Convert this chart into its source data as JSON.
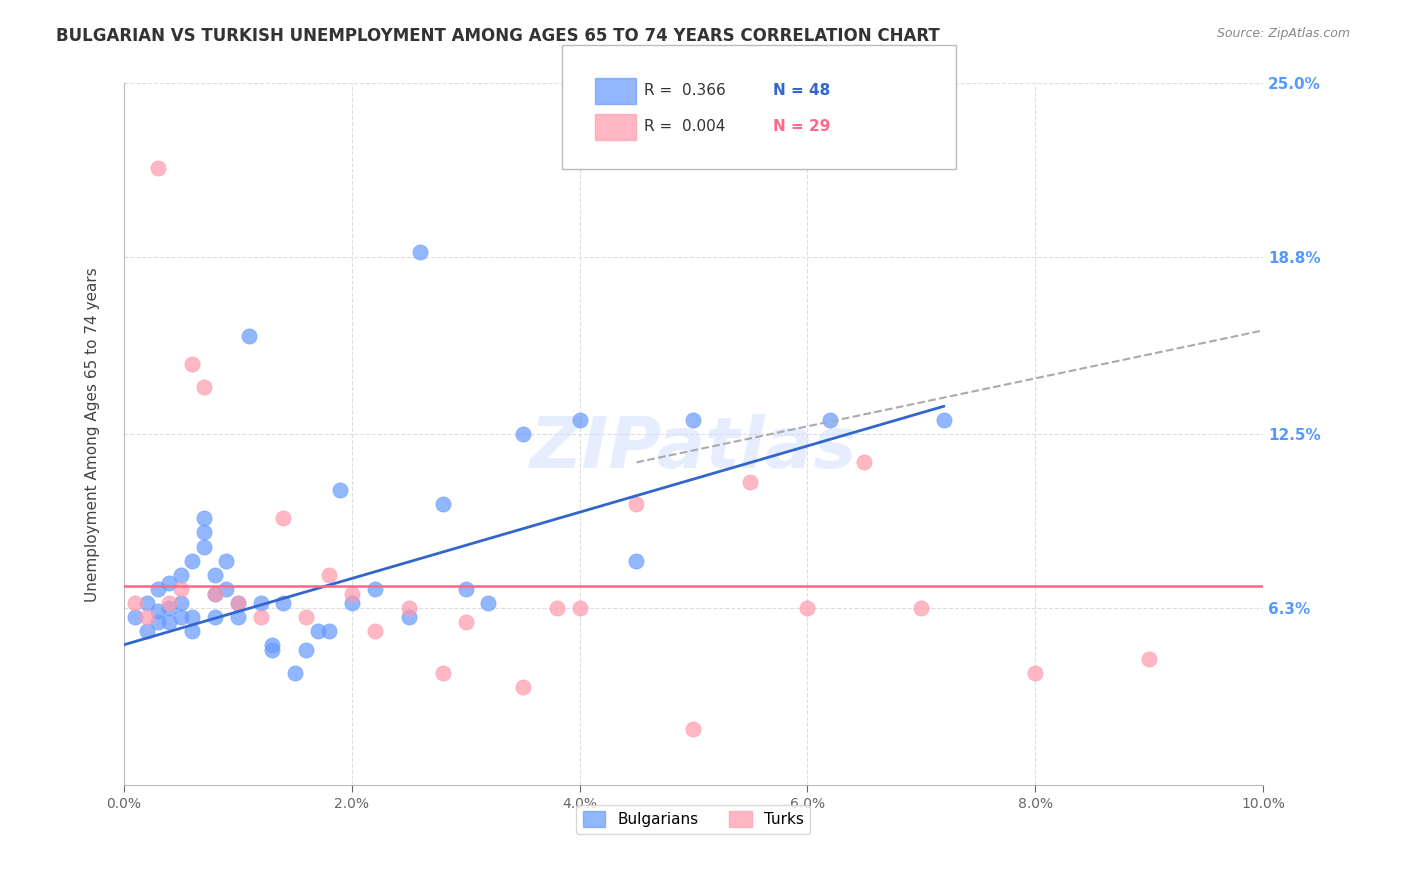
{
  "title": "BULGARIAN VS TURKISH UNEMPLOYMENT AMONG AGES 65 TO 74 YEARS CORRELATION CHART",
  "source": "Source: ZipAtlas.com",
  "xlabel": "",
  "ylabel": "Unemployment Among Ages 65 to 74 years",
  "xlim": [
    0,
    0.1
  ],
  "ylim": [
    0,
    0.25
  ],
  "xticks": [
    0.0,
    0.02,
    0.04,
    0.06,
    0.08,
    0.1
  ],
  "xticklabels": [
    "0.0%",
    "2.0%",
    "4.0%",
    "6.0%",
    "8.0%",
    "10.0%"
  ],
  "ytick_positions": [
    0.063,
    0.125,
    0.188,
    0.25
  ],
  "ytick_labels": [
    "6.3%",
    "12.5%",
    "18.8%",
    "25.0%"
  ],
  "watermark": "ZIPatlas",
  "bg_color": "#ffffff",
  "grid_color": "#dddddd",
  "blue_color": "#6699ff",
  "pink_color": "#ff99aa",
  "legend_R_blue": "R =  0.366",
  "legend_N_blue": "N = 48",
  "legend_R_pink": "R =  0.004",
  "legend_N_pink": "N = 29",
  "right_label_color_blue": "#5599ff",
  "right_label_color_pink": "#ff88aa",
  "bulgarians_x": [
    0.001,
    0.002,
    0.002,
    0.003,
    0.003,
    0.003,
    0.004,
    0.004,
    0.004,
    0.005,
    0.005,
    0.005,
    0.006,
    0.006,
    0.006,
    0.007,
    0.007,
    0.007,
    0.008,
    0.008,
    0.008,
    0.009,
    0.009,
    0.01,
    0.01,
    0.011,
    0.012,
    0.013,
    0.013,
    0.014,
    0.015,
    0.016,
    0.017,
    0.018,
    0.019,
    0.02,
    0.022,
    0.025,
    0.026,
    0.028,
    0.03,
    0.032,
    0.035,
    0.04,
    0.045,
    0.05,
    0.062,
    0.072
  ],
  "bulgarians_y": [
    0.06,
    0.055,
    0.065,
    0.058,
    0.062,
    0.07,
    0.058,
    0.063,
    0.072,
    0.06,
    0.065,
    0.075,
    0.055,
    0.06,
    0.08,
    0.085,
    0.09,
    0.095,
    0.06,
    0.068,
    0.075,
    0.07,
    0.08,
    0.06,
    0.065,
    0.16,
    0.065,
    0.05,
    0.048,
    0.065,
    0.04,
    0.048,
    0.055,
    0.055,
    0.105,
    0.065,
    0.07,
    0.06,
    0.19,
    0.1,
    0.07,
    0.065,
    0.125,
    0.13,
    0.08,
    0.13,
    0.13,
    0.13
  ],
  "turks_x": [
    0.001,
    0.002,
    0.003,
    0.004,
    0.005,
    0.006,
    0.007,
    0.008,
    0.01,
    0.012,
    0.014,
    0.016,
    0.018,
    0.02,
    0.022,
    0.025,
    0.028,
    0.03,
    0.035,
    0.038,
    0.04,
    0.045,
    0.05,
    0.055,
    0.06,
    0.065,
    0.07,
    0.08,
    0.09
  ],
  "turks_y": [
    0.065,
    0.06,
    0.22,
    0.065,
    0.07,
    0.15,
    0.142,
    0.068,
    0.065,
    0.06,
    0.095,
    0.06,
    0.075,
    0.068,
    0.055,
    0.063,
    0.04,
    0.058,
    0.035,
    0.063,
    0.063,
    0.1,
    0.02,
    0.108,
    0.063,
    0.115,
    0.063,
    0.04,
    0.045
  ],
  "blue_trend_x": [
    0.0,
    0.072
  ],
  "blue_trend_y": [
    0.05,
    0.135
  ],
  "pink_trend_y": 0.071,
  "dashed_trend_x": [
    0.045,
    0.1
  ],
  "dashed_trend_y": [
    0.115,
    0.162
  ]
}
